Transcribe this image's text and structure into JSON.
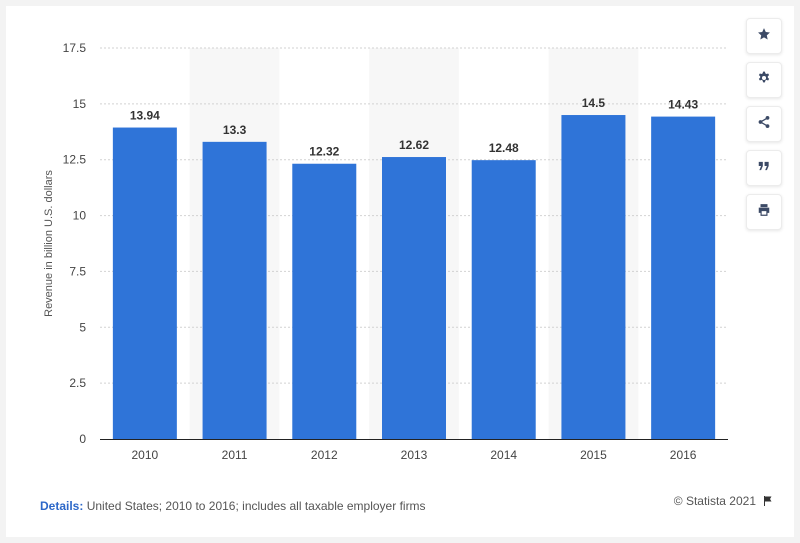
{
  "chart_data": {
    "type": "bar",
    "title": "",
    "xlabel": "",
    "ylabel": "Revenue in billion U.S. dollars",
    "categories": [
      "2010",
      "2011",
      "2012",
      "2013",
      "2014",
      "2015",
      "2016"
    ],
    "values": [
      13.94,
      13.3,
      12.32,
      12.62,
      12.48,
      14.5,
      14.43
    ],
    "value_labels": [
      "13.94",
      "13.3",
      "12.32",
      "12.62",
      "12.48",
      "14.5",
      "14.43"
    ],
    "ylim": [
      0,
      17.5
    ],
    "yticks": [
      0,
      2.5,
      5,
      7.5,
      10,
      12.5,
      15,
      17.5
    ],
    "ytick_labels": [
      "0",
      "2.5",
      "5",
      "7.5",
      "10",
      "12.5",
      "15",
      "17.5"
    ],
    "bar_color": "#2f74d8",
    "band_color": "#f7f7f7",
    "grid": true,
    "legend": "none"
  },
  "footer": {
    "details_label": "Details:",
    "details_text": "United States; 2010 to 2016; includes all taxable employer firms",
    "credit": "© Statista 2021"
  },
  "toolbar": {
    "icons": [
      "star-icon",
      "gear-icon",
      "share-icon",
      "quote-icon",
      "print-icon"
    ]
  }
}
